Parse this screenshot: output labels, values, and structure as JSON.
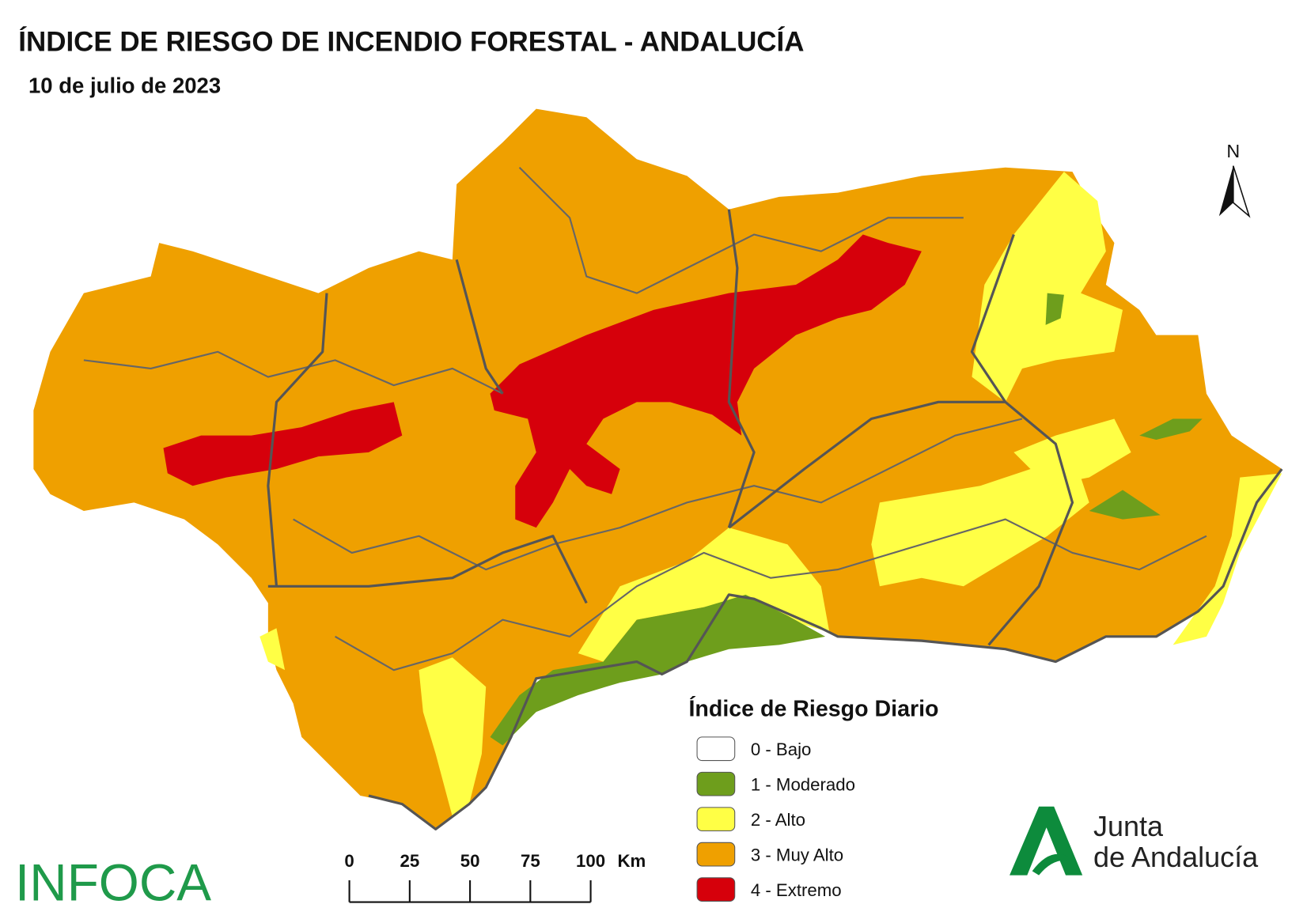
{
  "header": {
    "title": "ÍNDICE DE RIESGO DE INCENDIO FORESTAL - ANDALUCÍA",
    "subtitle": "10 de julio de 2023"
  },
  "north_arrow": {
    "label": "N"
  },
  "legend": {
    "title": "Índice de Riesgo Diario",
    "items": [
      {
        "label": "0 - Bajo",
        "color": "#ffffff"
      },
      {
        "label": "1 - Moderado",
        "color": "#6e9e1c"
      },
      {
        "label": "2 - Alto",
        "color": "#ffff45"
      },
      {
        "label": "3 - Muy Alto",
        "color": "#efa000"
      },
      {
        "label": "4 - Extremo",
        "color": "#d6000b"
      }
    ]
  },
  "scale_bar": {
    "ticks": [
      0,
      25,
      50,
      75,
      100
    ],
    "unit": "Km"
  },
  "logos": {
    "infoca": "INFOCA",
    "junta": [
      "Junta",
      "de Andalucía"
    ]
  }
}
